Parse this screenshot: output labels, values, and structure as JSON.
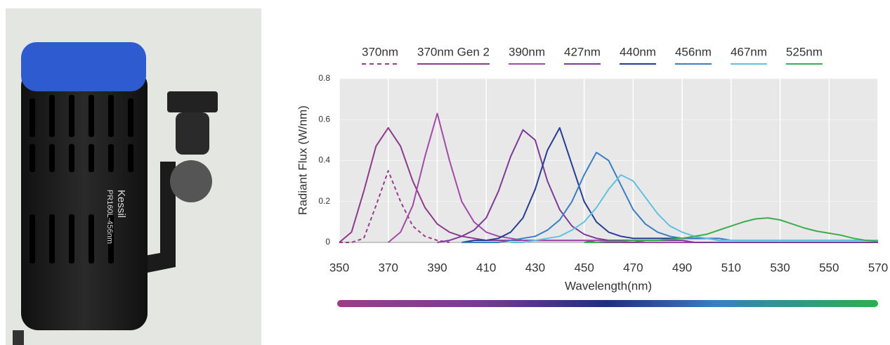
{
  "photo": {
    "brand": "Kessil",
    "model": "PR160L-456nm"
  },
  "chart_data": {
    "type": "line",
    "x_label": "Wavelength(nm)",
    "y_label": "Radiant Flux (W/nm)",
    "x": [
      350,
      355,
      360,
      365,
      370,
      375,
      380,
      385,
      390,
      395,
      400,
      405,
      410,
      415,
      420,
      425,
      430,
      435,
      440,
      445,
      450,
      455,
      460,
      465,
      470,
      475,
      480,
      485,
      490,
      495,
      500,
      505,
      510,
      515,
      520,
      525,
      530,
      535,
      540,
      545,
      550,
      555,
      560,
      565,
      570
    ],
    "xlim": [
      350,
      570
    ],
    "xticks": [
      350,
      370,
      390,
      410,
      430,
      450,
      470,
      490,
      510,
      530,
      550,
      570
    ],
    "ylim": [
      0,
      0.8
    ],
    "yticks": [
      0,
      0.2,
      0.4,
      0.6,
      0.8
    ],
    "grid": true,
    "series": [
      {
        "name": "370nm",
        "color": "#9a3c8c",
        "dash": true,
        "values": [
          0,
          0,
          0.02,
          0.18,
          0.35,
          0.2,
          0.08,
          0.03,
          0.01,
          0,
          null,
          null,
          null,
          null,
          null,
          null,
          null,
          null,
          null,
          null,
          null,
          null,
          null,
          null,
          null,
          null,
          null,
          null,
          null,
          null,
          null,
          null,
          null,
          null,
          null,
          null,
          null,
          null,
          null,
          null,
          null,
          null,
          null,
          null,
          null
        ]
      },
      {
        "name": "370nm Gen 2",
        "color": "#8c3a8c",
        "values": [
          0,
          0.05,
          0.25,
          0.47,
          0.56,
          0.47,
          0.3,
          0.17,
          0.09,
          0.05,
          0.03,
          0.02,
          0.01,
          0.01,
          0.01,
          0.01,
          0.01,
          0.01,
          0.01,
          0.01,
          0.01,
          0,
          0,
          0,
          0,
          0,
          0,
          0,
          0,
          0,
          0,
          0,
          0,
          0,
          0,
          0,
          0,
          0,
          0,
          0,
          0,
          0,
          0,
          0,
          0
        ]
      },
      {
        "name": "390nm",
        "color": "#a34aa8",
        "values": [
          null,
          null,
          null,
          null,
          0,
          0.05,
          0.18,
          0.42,
          0.63,
          0.4,
          0.2,
          0.1,
          0.05,
          0.03,
          0.02,
          0.01,
          0.01,
          0.01,
          0.01,
          0.01,
          0.01,
          0.01,
          0.01,
          0.01,
          0.01,
          0,
          0,
          0,
          0,
          0,
          0,
          0,
          0,
          0,
          0,
          0,
          0,
          0,
          0,
          0,
          0,
          0,
          0,
          0,
          0
        ]
      },
      {
        "name": "427nm",
        "color": "#7d3a98",
        "values": [
          null,
          null,
          null,
          null,
          null,
          null,
          null,
          null,
          0,
          0.01,
          0.03,
          0.06,
          0.12,
          0.25,
          0.42,
          0.55,
          0.5,
          0.3,
          0.16,
          0.08,
          0.04,
          0.02,
          0.01,
          0.01,
          0.01,
          0.01,
          0.01,
          0.01,
          0.01,
          0,
          0,
          0,
          0,
          0,
          0,
          0,
          0,
          0,
          0,
          0,
          0,
          0,
          0,
          0,
          0
        ]
      },
      {
        "name": "440nm",
        "color": "#263d90",
        "values": [
          null,
          null,
          null,
          null,
          null,
          null,
          null,
          null,
          null,
          null,
          0,
          0.01,
          0.01,
          0.02,
          0.05,
          0.12,
          0.26,
          0.45,
          0.56,
          0.38,
          0.2,
          0.1,
          0.05,
          0.03,
          0.02,
          0.02,
          0.02,
          0.02,
          0.02,
          0.02,
          0.02,
          0.01,
          0.01,
          0.01,
          0.01,
          0.01,
          0.01,
          0.01,
          0.01,
          0.01,
          0.01,
          0.01,
          0.01,
          0.01,
          0.01
        ]
      },
      {
        "name": "456nm",
        "color": "#3a7ec2",
        "values": [
          null,
          null,
          null,
          null,
          null,
          null,
          null,
          null,
          null,
          null,
          0,
          0,
          0,
          0,
          0.01,
          0.02,
          0.03,
          0.06,
          0.11,
          0.2,
          0.33,
          0.44,
          0.4,
          0.28,
          0.16,
          0.09,
          0.05,
          0.03,
          0.02,
          0.02,
          0.02,
          0.02,
          0.01,
          0.01,
          0.01,
          0.01,
          0.01,
          0.01,
          0.01,
          0.01,
          0.01,
          0.01,
          0.01,
          0.01,
          0.01
        ]
      },
      {
        "name": "467nm",
        "color": "#5ec3df",
        "values": [
          null,
          null,
          null,
          null,
          null,
          null,
          null,
          null,
          null,
          null,
          null,
          null,
          null,
          null,
          0,
          0,
          0.01,
          0.02,
          0.03,
          0.06,
          0.1,
          0.17,
          0.26,
          0.33,
          0.3,
          0.22,
          0.14,
          0.08,
          0.05,
          0.03,
          0.02,
          0.01,
          0.01,
          0.01,
          0.01,
          0.01,
          0.01,
          0.01,
          0.01,
          0.01,
          0.01,
          0.01,
          0.01,
          0.01,
          0.01
        ]
      },
      {
        "name": "525nm",
        "color": "#3aae4c",
        "values": [
          null,
          null,
          null,
          null,
          null,
          null,
          null,
          null,
          null,
          null,
          null,
          null,
          null,
          null,
          null,
          null,
          null,
          null,
          null,
          null,
          0,
          0,
          0.005,
          0.005,
          0.01,
          0.01,
          0.01,
          0.015,
          0.02,
          0.03,
          0.04,
          0.06,
          0.08,
          0.1,
          0.115,
          0.12,
          0.11,
          0.09,
          0.07,
          0.055,
          0.045,
          0.035,
          0.02,
          0.01,
          0.005
        ]
      }
    ]
  }
}
